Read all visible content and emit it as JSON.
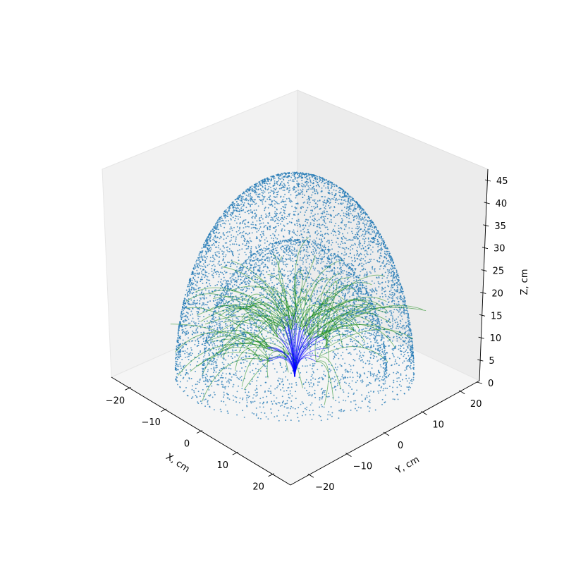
{
  "chart_data": {
    "type": "scatter3d",
    "title": "",
    "xlabel": "X, cm",
    "ylabel": "Y, cm",
    "zlabel": "Z, cm",
    "xlim": [
      -25,
      25
    ],
    "ylim": [
      -25,
      25
    ],
    "zlim": [
      0,
      45
    ],
    "x_ticks": [
      -20,
      -10,
      0,
      10,
      20
    ],
    "y_ticks": [
      -20,
      -10,
      0,
      10,
      20
    ],
    "z_ticks": [
      0,
      5,
      10,
      15,
      20,
      25,
      30,
      35,
      40,
      45
    ],
    "grid": false,
    "series": [
      {
        "kind": "points",
        "description_surface": "outer dome",
        "radius": 22,
        "z_max": 45,
        "color": "#1f77b4"
      },
      {
        "kind": "points",
        "description_surface": "inner dome",
        "radius": 17,
        "z_max": 30,
        "color": "#1f77b4"
      },
      {
        "kind": "trajectories",
        "color_trunk": "#0000ff",
        "color_branch": "#008000",
        "origin": [
          0,
          0,
          0
        ]
      }
    ]
  }
}
